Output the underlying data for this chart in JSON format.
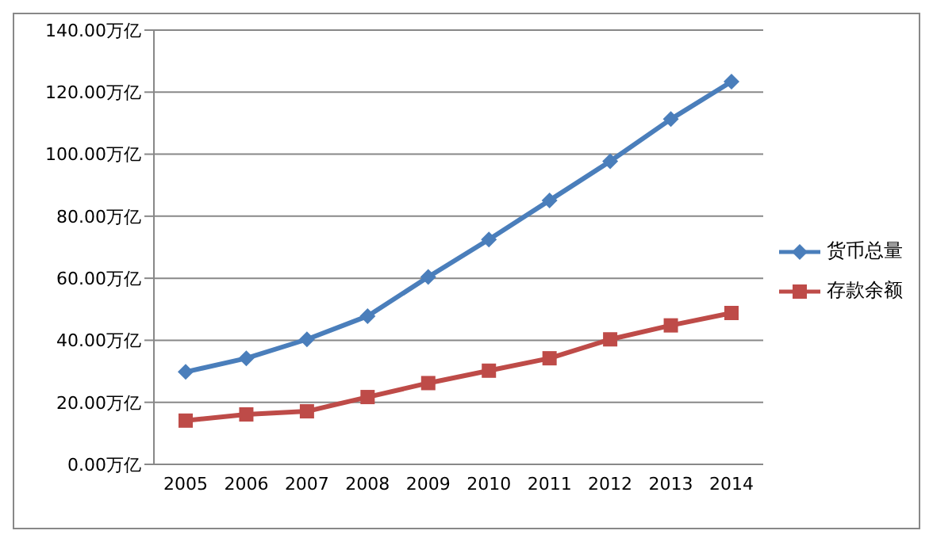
{
  "chart_data": {
    "type": "line",
    "categories": [
      "2005",
      "2006",
      "2007",
      "2008",
      "2009",
      "2010",
      "2011",
      "2012",
      "2013",
      "2014"
    ],
    "series": [
      {
        "name": "货币总量",
        "color": "#4a7ebb",
        "marker": "diamond",
        "values": [
          29.8,
          34.2,
          40.3,
          47.8,
          60.4,
          72.5,
          85.1,
          97.7,
          111.3,
          123.4
        ]
      },
      {
        "name": "存款余额",
        "color": "#be4b48",
        "marker": "square",
        "values": [
          14.1,
          16.1,
          17.1,
          21.7,
          26.2,
          30.2,
          34.2,
          40.3,
          44.8,
          48.8
        ]
      }
    ],
    "ylim": [
      0,
      140
    ],
    "yticks": [
      {
        "value": 0,
        "label": "0.00万亿"
      },
      {
        "value": 20,
        "label": "20.00万亿"
      },
      {
        "value": 40,
        "label": "40.00万亿"
      },
      {
        "value": 60,
        "label": "60.00万亿"
      },
      {
        "value": 80,
        "label": "80.00万亿"
      },
      {
        "value": 100,
        "label": "100.00万亿"
      },
      {
        "value": 120,
        "label": "120.00万亿"
      },
      {
        "value": 140,
        "label": "140.00万亿"
      }
    ],
    "grid": "y",
    "legend": "right",
    "line_style": "solid"
  }
}
